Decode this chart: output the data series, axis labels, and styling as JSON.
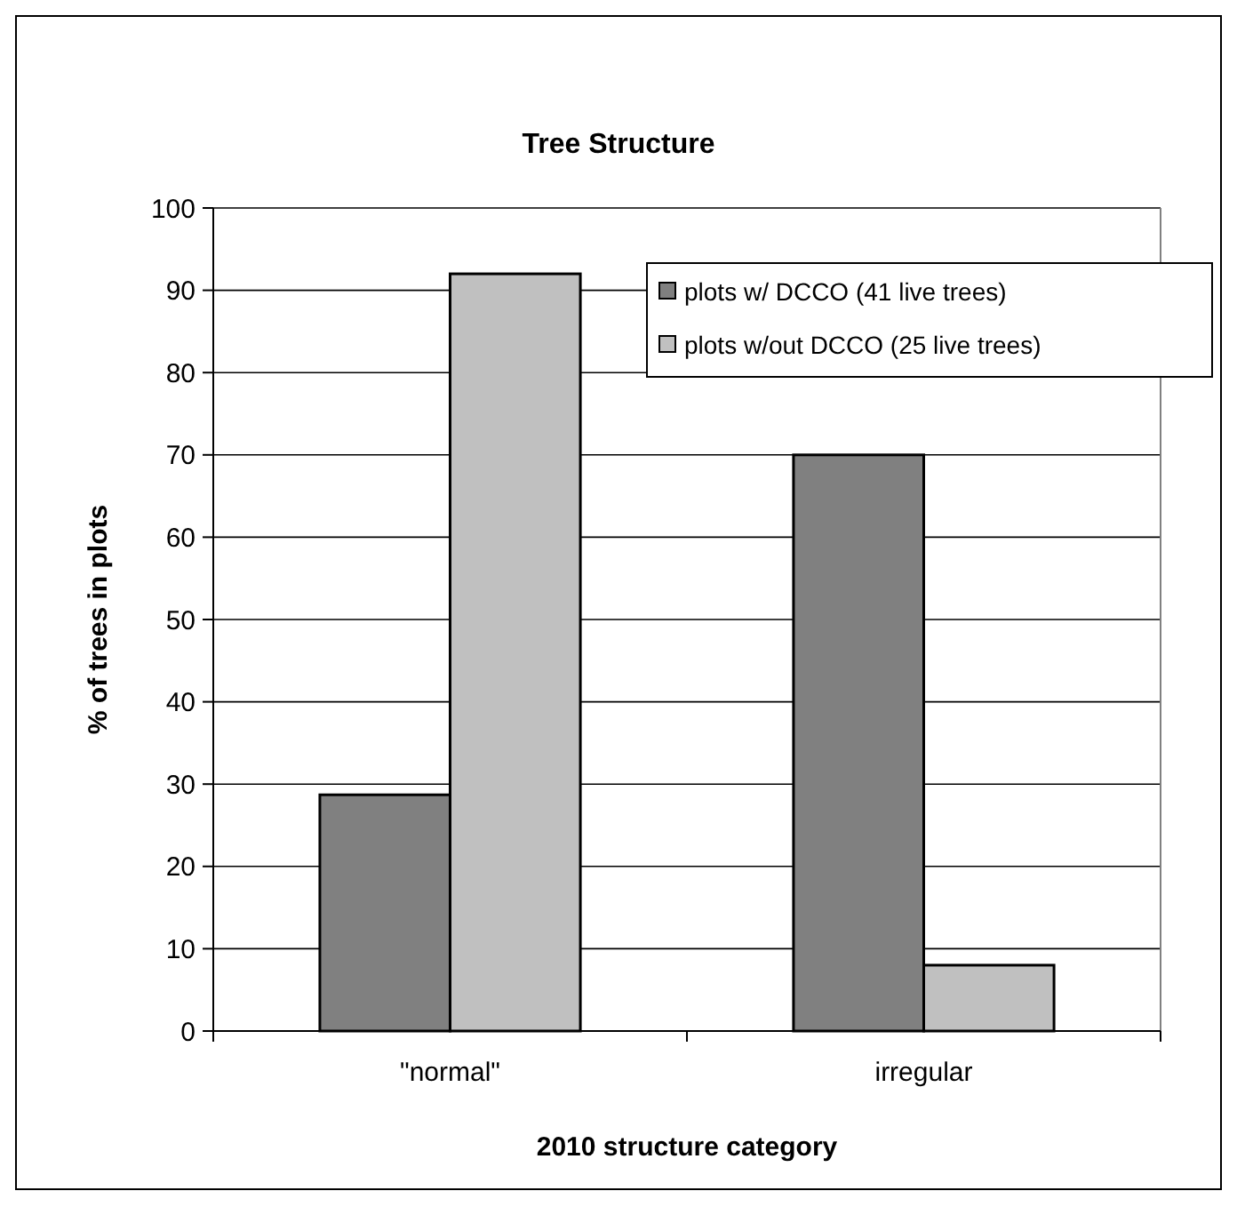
{
  "chart_data": {
    "type": "bar",
    "title": "Tree Structure",
    "xlabel": "2010 structure category",
    "ylabel": "% of trees in plots",
    "categories": [
      "\"normal\"",
      "irregular"
    ],
    "series": [
      {
        "name": "plots w/ DCCO (41 live trees)",
        "color": "#808080",
        "values": [
          28.7,
          70
        ]
      },
      {
        "name": "plots w/out DCCO (25 live trees)",
        "color": "#c0c0c0",
        "values": [
          92,
          8
        ]
      }
    ],
    "ylim": [
      0,
      100
    ],
    "yticks": [
      0,
      10,
      20,
      30,
      40,
      50,
      60,
      70,
      80,
      90,
      100
    ],
    "grid": "y",
    "legend": "top right"
  }
}
